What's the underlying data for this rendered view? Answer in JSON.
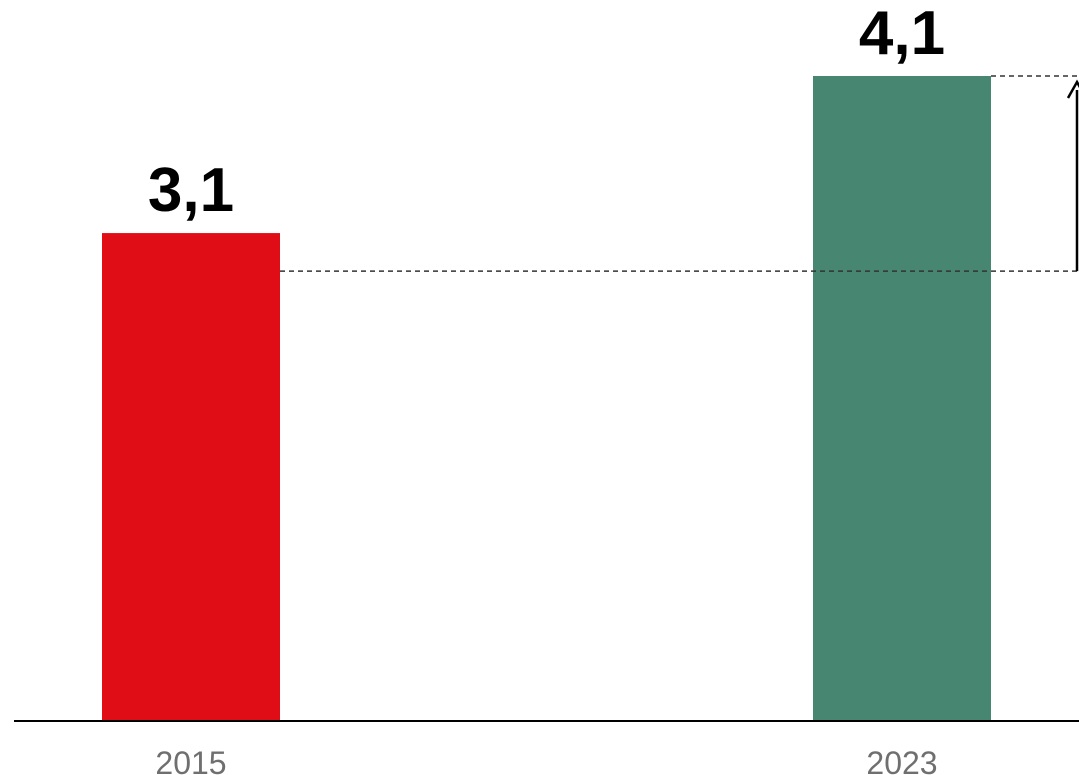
{
  "chart_data": {
    "type": "bar",
    "categories": [
      "2015",
      "2023"
    ],
    "values": [
      3.1,
      4.1
    ],
    "value_labels": [
      "3,1",
      "4,1"
    ],
    "colors": [
      "#e00c16",
      "#478670"
    ],
    "axis_color": "#000000",
    "guide_color": "#333333",
    "ylim": [
      0,
      4.1
    ],
    "grid": false,
    "annotation": "dashed guide lines with an arrow marking the increase from 2015 to 2023"
  }
}
